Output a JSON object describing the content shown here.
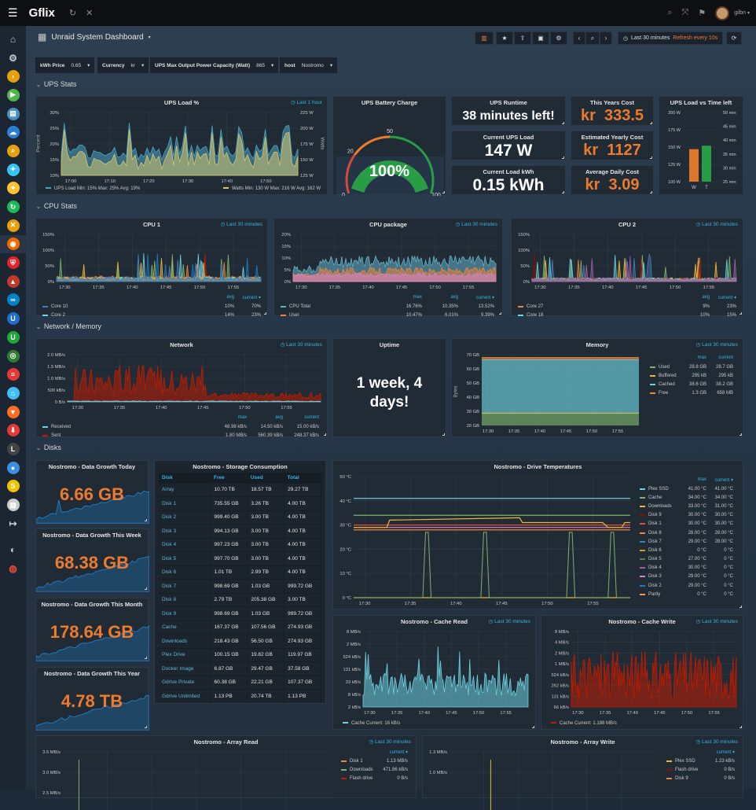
{
  "topbar": {
    "app_title": "Gflix",
    "user": "gilbn"
  },
  "sidebar": {
    "items": [
      "home",
      "settings",
      "plex",
      "emby",
      "ombi",
      "cloud",
      "search",
      "sonarr",
      "radarr",
      "lidarr",
      "tautulli",
      "grafana",
      "pihole",
      "organizr",
      "nextcloud",
      "unifi",
      "unifi-green",
      "heimdall",
      "pfsense",
      "home-assistant",
      "gitlab",
      "downloader",
      "lazy-librarian",
      "deluge",
      "sabnzbd",
      "bookstack",
      "sign-out",
      "github",
      "help"
    ]
  },
  "dashboard": {
    "title": "Unraid System Dashboard",
    "time_range": "Last 30 minutes",
    "refresh": "Refresh every 10s"
  },
  "variables": [
    {
      "label": "kWh Price",
      "value": "0.65"
    },
    {
      "label": "Currency",
      "value": "kr"
    },
    {
      "label": "UPS Max Output Power Capacity (Watt)",
      "value": "865"
    },
    {
      "label": "host",
      "value": "Nostromo"
    }
  ],
  "rows": [
    "UPS Stats",
    "CPU Stats",
    "Network / Memory",
    "Disks"
  ],
  "ups": {
    "load": {
      "title": "UPS Load %",
      "time": "Last 1 hour",
      "ylabel": "Percent",
      "ylabel_right": "Watts",
      "yticks": [
        "10%",
        "15%",
        "20%",
        "25%",
        "30%"
      ],
      "yticks_right": [
        "125 W",
        "150 W",
        "175 W",
        "200 W",
        "225 W"
      ],
      "xticks": [
        "17:00",
        "17:10",
        "17:20",
        "17:30",
        "17:40",
        "17:50"
      ],
      "legend_left": "UPS Load  Min: 15%  Max: 25%  Avg: 19%",
      "legend_right": "Watts  Min: 130 W  Max: 216 W  Avg: 162 W",
      "colors": [
        "#4ba3c3",
        "#d6c66e"
      ]
    },
    "battery": {
      "title": "UPS Battery Charge",
      "value": "100%",
      "percent": 100,
      "ticks": [
        "0",
        "20",
        "50",
        "100"
      ],
      "colors": {
        "ok": "#299c46",
        "warn": "#eb7b2e",
        "bad": "#d44a3a"
      }
    },
    "runtime": {
      "title": "UPS Runtime",
      "value": "38 minutes left!"
    },
    "current_load": {
      "title": "Current UPS Load",
      "value": "147 W"
    },
    "load_kwh": {
      "title": "Current Load kWh",
      "value": "0.15 kWh"
    },
    "year_cost": {
      "title": "This Years Cost",
      "value": "kr  333.5"
    },
    "yearly_est": {
      "title": "Estimated Yearly Cost",
      "value": "kr  1127"
    },
    "daily_cost": {
      "title": "Average Daily Cost",
      "value": "kr  3.09"
    },
    "load_vs_time": {
      "title": "UPS Load vs Time left",
      "yticks": [
        "100 W",
        "125 W",
        "150 W",
        "175 W",
        "200 W"
      ],
      "yticks_right": [
        "25 min",
        "30 min",
        "35 min",
        "40 min",
        "45 min",
        "50 min"
      ],
      "bars": [
        {
          "label": "W",
          "value": 147,
          "color": "#e0752d"
        },
        {
          "label": "T",
          "value": 38,
          "color": "#299c46"
        }
      ]
    }
  },
  "cpu": {
    "cpu1": {
      "title": "CPU 1",
      "time": "Last 30 minutes",
      "yticks": [
        "0%",
        "50%",
        "100%",
        "150%"
      ],
      "xticks": [
        "17:30",
        "17:35",
        "17:40",
        "17:45",
        "17:50",
        "17:55"
      ],
      "headers": [
        "avg",
        "current ▾"
      ],
      "legend": [
        {
          "name": "Core 10",
          "color": "#447ebc",
          "vals": [
            "10%",
            "70%"
          ]
        },
        {
          "name": "Core 2",
          "color": "#6ed0e0",
          "vals": [
            "14%",
            "23%"
          ]
        }
      ]
    },
    "package": {
      "title": "CPU package",
      "time": "Last 30 minutes",
      "yticks": [
        "0%",
        "5%",
        "10%",
        "15%",
        "20%"
      ],
      "xticks": [
        "17:30",
        "17:35",
        "17:40",
        "17:45",
        "17:50",
        "17:55"
      ],
      "headers": [
        "max",
        "avg",
        "current ▾"
      ],
      "legend": [
        {
          "name": "CPU Total",
          "color": "#64b0c8",
          "vals": [
            "16.76%",
            "10.35%",
            "13.52%"
          ]
        },
        {
          "name": "User",
          "color": "#ef843c",
          "vals": [
            "10.47%",
            "6.01%",
            "9.39%"
          ]
        }
      ]
    },
    "cpu2": {
      "title": "CPU 2",
      "time": "Last 30 minutes",
      "yticks": [
        "0%",
        "50%",
        "100%",
        "150%"
      ],
      "xticks": [
        "17:30",
        "17:35",
        "17:40",
        "17:45",
        "17:50",
        "17:55"
      ],
      "headers": [
        "avg",
        "current ▾"
      ],
      "legend": [
        {
          "name": "Core 27",
          "color": "#ef843c",
          "vals": [
            "9%",
            "23%"
          ]
        },
        {
          "name": "Core 18",
          "color": "#6ed0e0",
          "vals": [
            "10%",
            "15%"
          ]
        }
      ]
    }
  },
  "netmem": {
    "network": {
      "title": "Network",
      "time": "Last 30 minutes",
      "yticks": [
        "0 B/s",
        "500 kB/s",
        "1.0 MB/s",
        "1.5 MB/s",
        "2.0 MB/s"
      ],
      "xticks": [
        "17:30",
        "17:35",
        "17:40",
        "17:45",
        "17:50",
        "17:55"
      ],
      "headers": [
        "max",
        "avg",
        "current"
      ],
      "legend": [
        {
          "name": "Received",
          "color": "#6ed0e0",
          "vals": [
            "48.98 kB/s",
            "14.50 kB/s",
            "15.00 kB/s"
          ]
        },
        {
          "name": "Sent",
          "color": "#bf1b00",
          "vals": [
            "1.80 MB/s",
            "560.39 kB/s",
            "248.37 kB/s"
          ]
        }
      ]
    },
    "uptime": {
      "title": "Uptime",
      "value": "1 week, 4 days!"
    },
    "memory": {
      "title": "Memory",
      "time": "Last 30 minutes",
      "ylabel": "Bytes",
      "yticks": [
        "20 GB",
        "30 GB",
        "40 GB",
        "50 GB",
        "60 GB",
        "70 GB"
      ],
      "xticks": [
        "17:30",
        "17:35",
        "17:40",
        "17:45",
        "17:50",
        "17:55"
      ],
      "headers": [
        "max",
        "current"
      ],
      "legend": [
        {
          "name": "Used",
          "color": "#7eb26d",
          "vals": [
            "28.8 GB",
            "28.7 GB"
          ]
        },
        {
          "name": "Buffered",
          "color": "#eab839",
          "vals": [
            "295 kB",
            "295 kB"
          ]
        },
        {
          "name": "Cached",
          "color": "#6ed0e0",
          "vals": [
            "38.6 GB",
            "38.2 GB"
          ]
        },
        {
          "name": "Free",
          "color": "#ef843c",
          "vals": [
            "1.3 GB",
            "658 MB"
          ]
        }
      ]
    }
  },
  "disks": {
    "growth": [
      {
        "title": "Nostromo - Data Growth Today",
        "value": "6.66 GB"
      },
      {
        "title": "Nostromo - Data Growth This Week",
        "value": "68.38 GB"
      },
      {
        "title": "Nostromo - Data Growth This Month",
        "value": "178.64 GB"
      },
      {
        "title": "Nostromo - Data Growth This Year",
        "value": "4.78 TB"
      }
    ],
    "storage": {
      "title": "Nostromo - Storage Consumption",
      "headers": [
        "Disk",
        "Free",
        "Used",
        "Total"
      ],
      "rows": [
        [
          "Array",
          "10.70 TB",
          "18.57 TB",
          "29.27 TB"
        ],
        [
          "Disk 1",
          "735.55 GB",
          "3.26 TB",
          "4.00 TB"
        ],
        [
          "Disk 2",
          "999.40 GB",
          "3.00 TB",
          "4.00 TB"
        ],
        [
          "Disk 3",
          "994.13 GB",
          "3.00 TB",
          "4.00 TB"
        ],
        [
          "Disk 4",
          "997.23 GB",
          "3.00 TB",
          "4.00 TB"
        ],
        [
          "Disk 5",
          "997.70 GB",
          "3.00 TB",
          "4.00 TB"
        ],
        [
          "Disk 6",
          "1.01 TB",
          "2.99 TB",
          "4.00 TB"
        ],
        [
          "Disk 7",
          "998.69 GB",
          "1.03 GB",
          "999.72 GB"
        ],
        [
          "Disk 8",
          "2.79 TB",
          "205.38 GB",
          "3.00 TB"
        ],
        [
          "Disk 9",
          "998.69 GB",
          "1.03 GB",
          "999.72 GB"
        ],
        [
          "Cache",
          "167.37 GB",
          "107.56 GB",
          "274.93 GB"
        ],
        [
          "Downloads",
          "218.43 GB",
          "56.50 GB",
          "274.93 GB"
        ],
        [
          "Plex Drive",
          "100.15 GB",
          "19.82 GB",
          "119.97 GB"
        ],
        [
          "Docker Image",
          "6.87 GB",
          "29.47 GB",
          "37.58 GB"
        ],
        [
          "Gdrive Private",
          "60.38 GB",
          "22.21 GB",
          "107.37 GB"
        ],
        [
          "Gdrive Unlimited",
          "1.13 PB",
          "20.74 TB",
          "1.13 PB"
        ]
      ]
    },
    "temps": {
      "title": "Nostromo - Drive Temperatures",
      "yticks": [
        "0 °C",
        "10 °C",
        "20 °C",
        "30 °C",
        "40 °C",
        "50 °C"
      ],
      "xticks": [
        "17:30",
        "17:35",
        "17:40",
        "17:45",
        "17:50",
        "17:55"
      ],
      "headers": [
        "max",
        "current ▾"
      ],
      "legend": [
        {
          "name": "Plex SSD",
          "color": "#6ed0e0",
          "vals": [
            "41.00 °C",
            "41.00 °C"
          ]
        },
        {
          "name": "Cache",
          "color": "#7eb26d",
          "vals": [
            "34.00 °C",
            "34.00 °C"
          ]
        },
        {
          "name": "Downloads",
          "color": "#eab839",
          "vals": [
            "33.00 °C",
            "31.00 °C"
          ]
        },
        {
          "name": "Disk 9",
          "color": "#890f02",
          "vals": [
            "30.00 °C",
            "30.00 °C"
          ]
        },
        {
          "name": "Disk 1",
          "color": "#e24d42",
          "vals": [
            "30.00 °C",
            "30.00 °C"
          ]
        },
        {
          "name": "Disk 8",
          "color": "#ef843c",
          "vals": [
            "28.00 °C",
            "28.00 °C"
          ]
        },
        {
          "name": "Disk 7",
          "color": "#447ebc",
          "vals": [
            "29.00 °C",
            "28.00 °C"
          ]
        },
        {
          "name": "Disk 6",
          "color": "#cca300",
          "vals": [
            "0 °C",
            "0 °C"
          ]
        },
        {
          "name": "Disk 5",
          "color": "#508642",
          "vals": [
            "27.00 °C",
            "0 °C"
          ]
        },
        {
          "name": "Disk 4",
          "color": "#a05da0",
          "vals": [
            "30.00 °C",
            "0 °C"
          ]
        },
        {
          "name": "Disk 3",
          "color": "#d683ce",
          "vals": [
            "29.00 °C",
            "0 °C"
          ]
        },
        {
          "name": "Disk 2",
          "color": "#1f78c1",
          "vals": [
            "29.00 °C",
            "0 °C"
          ]
        },
        {
          "name": "Parity",
          "color": "#f9934e",
          "vals": [
            "0 °C",
            "0 °C"
          ]
        }
      ]
    },
    "cache_read": {
      "title": "Nostromo - Cache Read",
      "time": "Last 30 minutes",
      "yticks": [
        "2 kB/s",
        "8 kB/s",
        "33 kB/s",
        "131 kB/s",
        "524 kB/s",
        "2 MB/s",
        "8 MB/s"
      ],
      "xticks": [
        "17:30",
        "17:35",
        "17:40",
        "17:45",
        "17:50",
        "17:55"
      ],
      "legend": "Cache  Current: 16 kB/s",
      "color": "#6ed0e0"
    },
    "cache_write": {
      "title": "Nostromo - Cache Write",
      "time": "Last 30 minutes",
      "yticks": [
        "66 kB/s",
        "131 kB/s",
        "262 kB/s",
        "524 kB/s",
        "1 MB/s",
        "2 MB/s",
        "4 MB/s",
        "8 MB/s"
      ],
      "xticks": [
        "17:30",
        "17:35",
        "17:40",
        "17:45",
        "17:50",
        "17:55"
      ],
      "legend": "Cache  Current: 1.188 MB/s",
      "color": "#bf1b00"
    },
    "array_read": {
      "title": "Nostromo - Array Read",
      "time": "Last 30 minutes",
      "yticks": [
        "2.5 MB/s",
        "3.0 MB/s",
        "3.5 MB/s"
      ],
      "headers": [
        "current ▾"
      ],
      "legend": [
        {
          "name": "Disk 1",
          "color": "#ef843c",
          "vals": [
            "1.13 MB/s"
          ]
        },
        {
          "name": "Downloads",
          "color": "#7eb26d",
          "vals": [
            "471.86 kB/s"
          ]
        },
        {
          "name": "Flash drive",
          "color": "#bf1b00",
          "vals": [
            "0 B/s"
          ]
        }
      ]
    },
    "array_write": {
      "title": "Nostromo - Array Write",
      "time": "Last 30 minutes",
      "yticks": [
        "1.0 MB/s",
        "1.3 MB/s"
      ],
      "headers": [
        "current ▾"
      ],
      "legend": [
        {
          "name": "Plex SSD",
          "color": "#eab839",
          "vals": [
            "1.23 kB/s"
          ]
        },
        {
          "name": "Flash drive",
          "color": "#890f02",
          "vals": [
            "0 B/s"
          ]
        },
        {
          "name": "Disk 9",
          "color": "#ef843c",
          "vals": [
            "0 B/s"
          ]
        }
      ]
    }
  }
}
